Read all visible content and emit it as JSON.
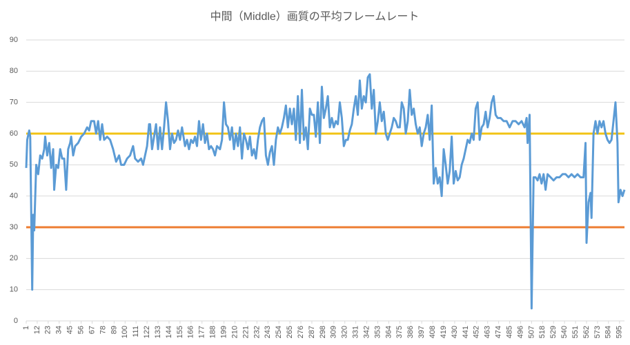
{
  "chart_data": {
    "type": "line",
    "title": "中間（Middle）画質の平均フレームレート",
    "series": [
      {
        "color": "#5b9bd5",
        "x": [
          1,
          2,
          4,
          5,
          6,
          7,
          8,
          9,
          11,
          13,
          15,
          17,
          19,
          20,
          22,
          24,
          26,
          28,
          29,
          31,
          33,
          35,
          37,
          39,
          41,
          43,
          45,
          46,
          48,
          50,
          53,
          56,
          59,
          62,
          64,
          66,
          69,
          71,
          73,
          75,
          77,
          79,
          82,
          85,
          88,
          91,
          94,
          96,
          99,
          102,
          105,
          108,
          110,
          113,
          116,
          118,
          120,
          122,
          124,
          125,
          127,
          129,
          131,
          133,
          135,
          137,
          139,
          141,
          143,
          145,
          147,
          149,
          151,
          153,
          155,
          157,
          160,
          162,
          164,
          166,
          168,
          170,
          172,
          174,
          176,
          178,
          180,
          182,
          184,
          186,
          188,
          190,
          192,
          195,
          197,
          199,
          201,
          203,
          205,
          207,
          209,
          211,
          213,
          215,
          217,
          219,
          221,
          223,
          225,
          227,
          229,
          231,
          233,
          235,
          237,
          239,
          241,
          243,
          245,
          247,
          249,
          251,
          253,
          255,
          257,
          259,
          261,
          263,
          265,
          267,
          269,
          271,
          273,
          275,
          277,
          279,
          281,
          283,
          285,
          287,
          289,
          291,
          293,
          295,
          297,
          299,
          301,
          303,
          305,
          307,
          309,
          311,
          313,
          315,
          317,
          319,
          321,
          323,
          325,
          327,
          329,
          331,
          333,
          335,
          337,
          339,
          341,
          343,
          345,
          347,
          349,
          351,
          353,
          355,
          357,
          359,
          361,
          363,
          365,
          367,
          369,
          371,
          373,
          375,
          377,
          379,
          381,
          383,
          385,
          387,
          389,
          391,
          393,
          395,
          397,
          399,
          401,
          403,
          405,
          407,
          409,
          411,
          413,
          415,
          417,
          419,
          421,
          423,
          425,
          427,
          429,
          431,
          433,
          435,
          437,
          439,
          441,
          443,
          445,
          447,
          449,
          451,
          453,
          455,
          457,
          459,
          461,
          463,
          465,
          467,
          469,
          471,
          473,
          476,
          479,
          482,
          485,
          488,
          491,
          494,
          497,
          500,
          502,
          503,
          505,
          507,
          509,
          511,
          513,
          515,
          517,
          519,
          521,
          523,
          526,
          529,
          532,
          535,
          538,
          541,
          544,
          547,
          550,
          553,
          556,
          559,
          561,
          562,
          564,
          566,
          567,
          569,
          571,
          573,
          575,
          577,
          579,
          581,
          583,
          585,
          587,
          589,
          591,
          593,
          594,
          596,
          598,
          600
        ],
        "values": [
          49,
          58,
          61,
          59,
          35,
          10,
          34,
          29,
          50,
          47,
          53,
          52,
          55,
          59,
          53,
          57,
          49,
          55,
          42,
          50,
          49,
          55,
          52,
          52,
          42,
          55,
          57,
          59,
          53,
          56,
          57,
          59,
          60,
          62,
          61,
          64,
          64,
          60,
          64,
          58,
          63,
          58,
          59,
          58,
          55,
          51,
          53,
          50,
          50,
          52,
          53,
          56,
          52,
          51,
          52,
          50,
          53,
          56,
          63,
          63,
          55,
          59,
          63,
          55,
          62,
          55,
          62,
          70,
          64,
          55,
          60,
          57,
          58,
          61,
          58,
          62,
          56,
          58,
          55,
          58,
          57,
          59,
          56,
          64,
          58,
          63,
          57,
          60,
          55,
          56,
          55,
          53,
          56,
          55,
          58,
          70,
          63,
          62,
          58,
          62,
          55,
          60,
          56,
          62,
          52,
          60,
          58,
          55,
          59,
          53,
          55,
          52,
          58,
          62,
          64,
          65,
          53,
          50,
          54,
          56,
          50,
          58,
          62,
          60,
          62,
          65,
          69,
          62,
          68,
          63,
          68,
          58,
          72,
          57,
          74,
          58,
          62,
          55,
          68,
          66,
          66,
          59,
          70,
          57,
          75,
          65,
          68,
          72,
          62,
          65,
          62,
          64,
          63,
          70,
          65,
          56,
          58,
          58,
          61,
          63,
          68,
          72,
          66,
          77,
          68,
          72,
          70,
          78,
          79,
          68,
          74,
          60,
          64,
          70,
          64,
          67,
          60,
          58,
          60,
          62,
          65,
          64,
          62,
          62,
          70,
          68,
          60,
          64,
          74,
          66,
          68,
          63,
          60,
          62,
          56,
          60,
          62,
          66,
          58,
          69,
          44,
          49,
          44,
          46,
          40,
          55,
          50,
          44,
          48,
          59,
          44,
          48,
          45,
          46,
          50,
          52,
          55,
          58,
          57,
          60,
          58,
          68,
          70,
          58,
          62,
          63,
          67,
          62,
          65,
          70,
          72,
          66,
          65,
          65,
          64,
          64,
          62,
          64,
          64,
          63,
          64,
          62,
          65,
          57,
          66,
          4,
          46,
          46,
          45,
          47,
          44,
          47,
          42,
          47,
          46,
          45,
          46,
          46,
          47,
          47,
          46,
          47,
          46,
          47,
          46,
          46,
          57,
          25,
          38,
          41,
          33,
          60,
          64,
          60,
          64,
          62,
          64,
          60,
          58,
          57,
          58,
          64,
          70,
          57,
          38,
          42,
          40,
          42
        ]
      }
    ],
    "reference_lines": [
      {
        "value": 60,
        "color": "#f2c314"
      },
      {
        "value": 30,
        "color": "#ed7d31"
      }
    ],
    "xlim": [
      1,
      600
    ],
    "xticks": [
      1,
      12,
      23,
      34,
      45,
      56,
      67,
      78,
      89,
      100,
      111,
      122,
      133,
      144,
      155,
      166,
      177,
      188,
      199,
      210,
      221,
      232,
      243,
      254,
      265,
      276,
      287,
      298,
      309,
      320,
      331,
      342,
      353,
      364,
      375,
      386,
      397,
      408,
      419,
      430,
      441,
      452,
      463,
      474,
      485,
      496,
      507,
      518,
      529,
      540,
      551,
      562,
      573,
      584,
      595
    ],
    "ylim": [
      0,
      90
    ],
    "yticks": [
      0,
      10,
      20,
      30,
      40,
      50,
      60,
      70,
      80,
      90
    ],
    "grid": true
  }
}
